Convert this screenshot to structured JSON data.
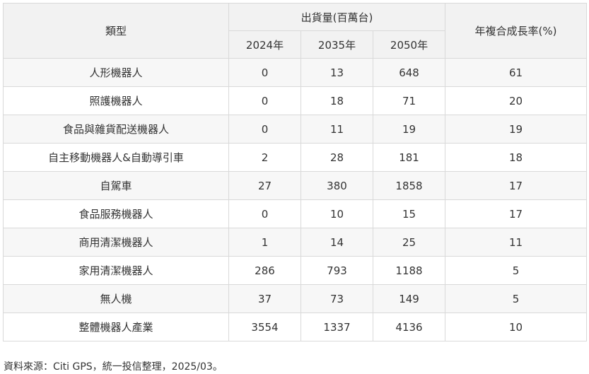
{
  "table": {
    "header": {
      "type": "類型",
      "shipments_group": "出貨量(百萬台)",
      "years": [
        "2024年",
        "2035年",
        "2050年"
      ],
      "cagr": "年複合成長率(%)"
    },
    "rows": [
      {
        "type": "人形機器人",
        "y2024": "0",
        "y2035": "13",
        "y2050": "648",
        "cagr": "61"
      },
      {
        "type": "照護機器人",
        "y2024": "0",
        "y2035": "18",
        "y2050": "71",
        "cagr": "20"
      },
      {
        "type": "食品與雜貨配送機器人",
        "y2024": "0",
        "y2035": "11",
        "y2050": "19",
        "cagr": "19"
      },
      {
        "type": "自主移動機器人&自動導引車",
        "y2024": "2",
        "y2035": "28",
        "y2050": "181",
        "cagr": "18"
      },
      {
        "type": "自駕車",
        "y2024": "27",
        "y2035": "380",
        "y2050": "1858",
        "cagr": "17"
      },
      {
        "type": "食品服務機器人",
        "y2024": "0",
        "y2035": "10",
        "y2050": "15",
        "cagr": "17"
      },
      {
        "type": "商用清潔機器人",
        "y2024": "1",
        "y2035": "14",
        "y2050": "25",
        "cagr": "11"
      },
      {
        "type": "家用清潔機器人",
        "y2024": "286",
        "y2035": "793",
        "y2050": "1188",
        "cagr": "5"
      },
      {
        "type": "無人機",
        "y2024": "37",
        "y2035": "73",
        "y2050": "149",
        "cagr": "5"
      },
      {
        "type": "整體機器人產業",
        "y2024": "3554",
        "y2035": "1337",
        "y2050": "4136",
        "cagr": "10"
      }
    ]
  },
  "footnote": "資料來源：Citi GPS，統一投信整理，2025/03。"
}
